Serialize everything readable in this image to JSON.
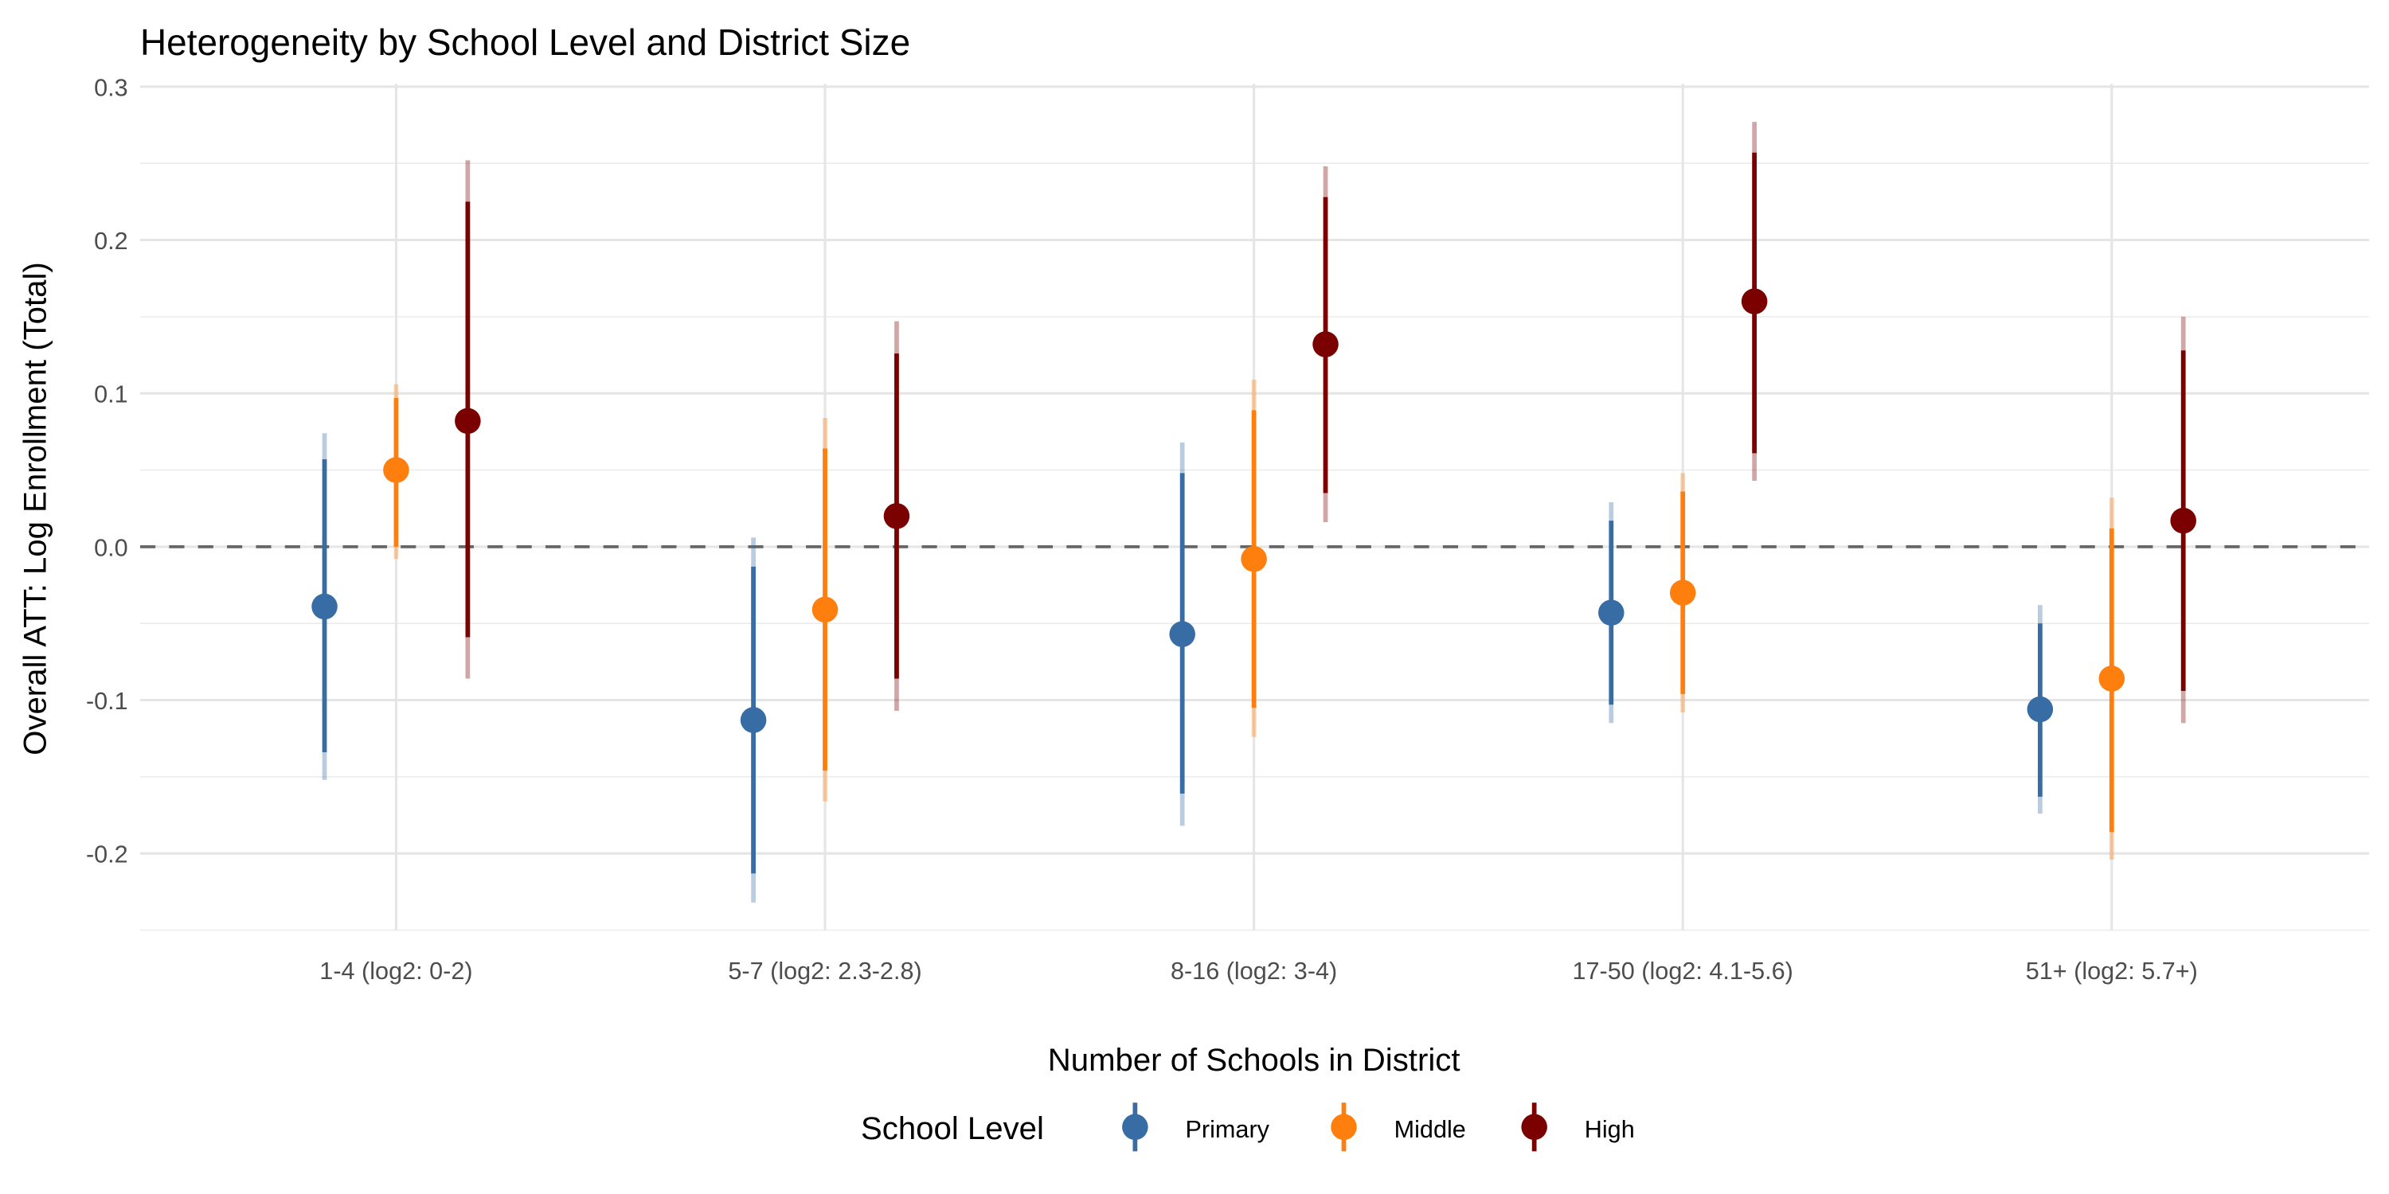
{
  "chart_data": {
    "type": "pointrange",
    "title": "Heterogeneity by School Level and District Size",
    "xlabel": "Number of Schools in District",
    "ylabel": "Overall ATT: Log Enrollment (Total)",
    "ylim": [
      -0.25,
      0.3
    ],
    "yticks": [
      -0.2,
      -0.1,
      0.0,
      0.1,
      0.2,
      0.3
    ],
    "ytick_labels": [
      "-0.2",
      "-0.1",
      "0.0",
      "0.1",
      "0.2",
      "0.3"
    ],
    "grid": true,
    "reference_line": {
      "y": 0,
      "style": "dashed"
    },
    "categories": [
      "1-4 (log2: 0-2)",
      "5-7 (log2: 2.3-2.8)",
      "8-16 (log2: 3-4)",
      "17-50 (log2: 4.1-5.6)",
      "51+ (log2: 5.7+)"
    ],
    "legend": {
      "title": "School Level",
      "position": "bottom"
    },
    "series": [
      {
        "name": "Primary",
        "color": "#386CA5",
        "estimate": [
          -0.039,
          -0.113,
          -0.057,
          -0.043,
          -0.106
        ],
        "ci90_low": [
          -0.134,
          -0.213,
          -0.161,
          -0.103,
          -0.163
        ],
        "ci90_high": [
          0.057,
          -0.013,
          0.048,
          0.017,
          -0.05
        ],
        "ci95_low": [
          -0.152,
          -0.232,
          -0.182,
          -0.115,
          -0.174
        ],
        "ci95_high": [
          0.074,
          0.006,
          0.068,
          0.029,
          -0.038
        ]
      },
      {
        "name": "Middle",
        "color": "#FF7F0E",
        "estimate": [
          0.05,
          -0.041,
          -0.008,
          -0.03,
          -0.086
        ],
        "ci90_low": [
          0.0,
          -0.146,
          -0.105,
          -0.096,
          -0.186
        ],
        "ci90_high": [
          0.097,
          0.064,
          0.089,
          0.036,
          0.012
        ],
        "ci95_low": [
          -0.008,
          -0.166,
          -0.124,
          -0.108,
          -0.204
        ],
        "ci95_high": [
          0.106,
          0.084,
          0.109,
          0.048,
          0.032
        ]
      },
      {
        "name": "High",
        "color": "#7B0000",
        "estimate": [
          0.082,
          0.02,
          0.132,
          0.16,
          0.017
        ],
        "ci90_low": [
          -0.059,
          -0.086,
          0.035,
          0.061,
          -0.094
        ],
        "ci90_high": [
          0.225,
          0.126,
          0.228,
          0.257,
          0.128
        ],
        "ci95_low": [
          -0.086,
          -0.107,
          0.016,
          0.043,
          -0.115
        ],
        "ci95_high": [
          0.252,
          0.147,
          0.248,
          0.277,
          0.15
        ]
      }
    ]
  }
}
